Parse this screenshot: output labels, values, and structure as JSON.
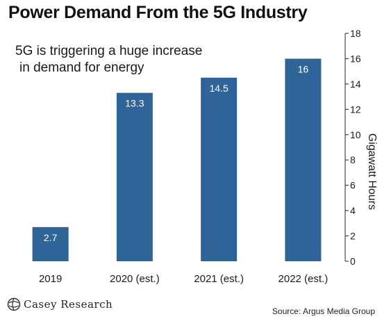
{
  "chart_data": {
    "type": "bar",
    "title": "Power Demand From the 5G Industry",
    "annotation": [
      "5G is triggering a huge increase",
      "in demand for energy"
    ],
    "categories": [
      "2019",
      "2020 (est.)",
      "2021 (est.)",
      "2022 (est.)"
    ],
    "values": [
      2.7,
      13.3,
      14.5,
      16
    ],
    "value_labels": [
      "2.7",
      "13.3",
      "14.5",
      "16"
    ],
    "ylabel": "Gigawatt Hours",
    "ylim": [
      0,
      18
    ],
    "yticks": [
      "0",
      "2",
      "4",
      "6",
      "8",
      "10",
      "12",
      "14",
      "16",
      "18"
    ],
    "y_axis_side": "right",
    "grid": false,
    "bar_color": "#2f6499",
    "label_color": "#ffffff"
  },
  "footer": {
    "logo_text": "Casey Research",
    "source": "Source: Argus Media Group"
  }
}
